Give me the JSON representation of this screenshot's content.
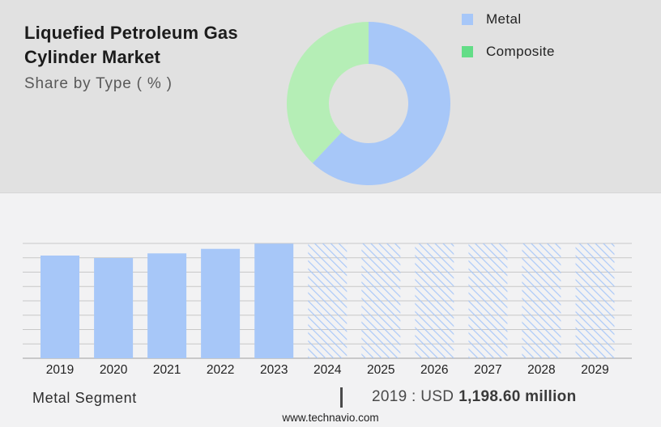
{
  "header": {
    "title_line1": "Liquefied Petroleum Gas",
    "title_line2": "Cylinder Market",
    "subtitle": "Share by Type ( % )"
  },
  "chart_data": [
    {
      "type": "pie",
      "donut": true,
      "title": "Share by Type ( % )",
      "labels": [
        "Metal",
        "Composite"
      ],
      "values": [
        62,
        38
      ],
      "unit": "%",
      "slice_colors": [
        "#a7c7f8",
        "#b5eeb6"
      ],
      "legend_colors": [
        "#a7c7f8",
        "#63dd87"
      ],
      "legend_position": "top-right",
      "start_angle_deg": 0,
      "direction": "clockwise"
    },
    {
      "type": "bar",
      "categories": [
        "2019",
        "2020",
        "2021",
        "2022",
        "2023",
        "2024",
        "2025",
        "2026",
        "2027",
        "2028",
        "2029"
      ],
      "values": [
        1198.6,
        1170,
        1224,
        1277,
        1337,
        null,
        null,
        null,
        null,
        null,
        null
      ],
      "unit": "USD million",
      "forecast_categories": [
        "2024",
        "2025",
        "2026",
        "2027",
        "2028",
        "2029"
      ],
      "forecast_style": "diagonal-hatch-full-height",
      "ylim": [
        0,
        1340
      ],
      "gridline_count": 9,
      "grid_on": true,
      "bar_color": "#a7c7f8",
      "known_point_label": "2019 : USD 1,198.60 million"
    }
  ],
  "footer": {
    "segment_label": "Metal Segment",
    "separator": "|",
    "value_year_prefix": "2019 : USD",
    "value_amount": "1,198.60 million",
    "website": "www.technavio.com"
  },
  "colors": {
    "top_bg": "#e1e1e1",
    "bottom_bg": "#f2f2f3",
    "metal_blue": "#a7c7f8",
    "donut_green": "#b5eeb6",
    "legend_green": "#63dd87",
    "grid_line": "#c8c8c8",
    "axis_line": "#b0b0b0",
    "title_text": "#1c1c1c",
    "subtitle_text": "#595959",
    "year_label_text": "#222222",
    "value_text_bold": "#3a3a3a"
  }
}
